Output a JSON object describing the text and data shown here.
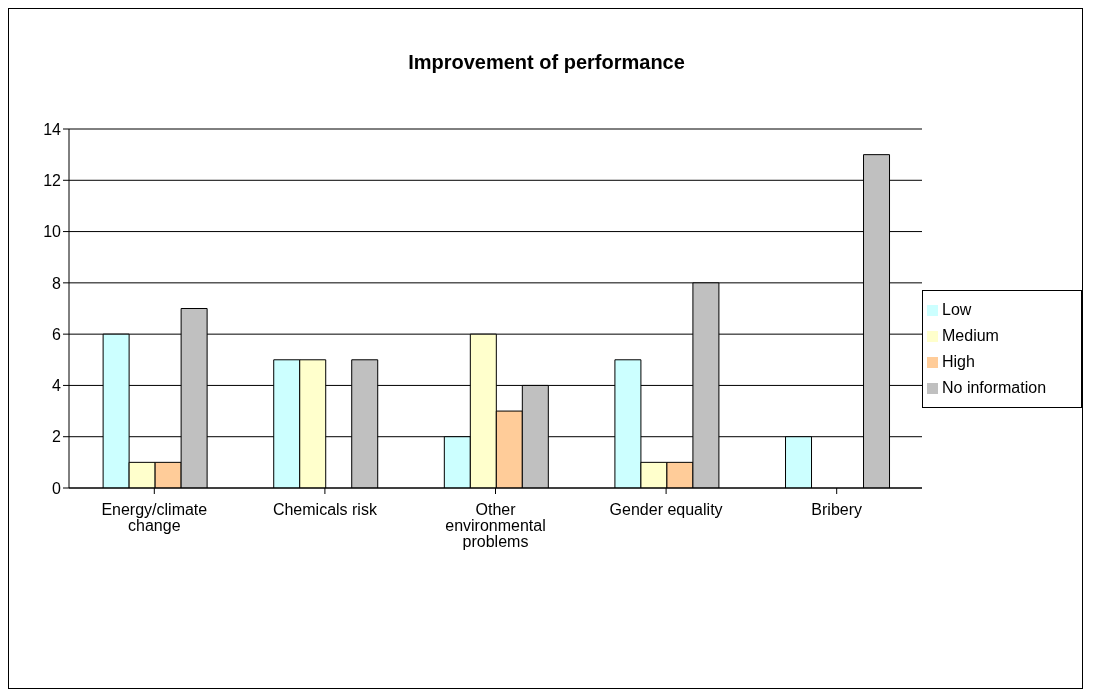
{
  "chart_data": {
    "type": "bar",
    "title": "Improvement of performance",
    "categories": [
      "Energy/climate change",
      "Chemicals risk",
      "Other environmental problems",
      "Gender equality",
      "Bribery"
    ],
    "series": [
      {
        "name": "Low",
        "color": "#ccffff",
        "values": [
          6,
          5,
          2,
          5,
          2
        ]
      },
      {
        "name": "Medium",
        "color": "#ffffcc",
        "values": [
          1,
          5,
          6,
          1,
          0
        ]
      },
      {
        "name": "High",
        "color": "#ffcc99",
        "values": [
          1,
          0,
          3,
          1,
          0
        ]
      },
      {
        "name": "No information",
        "color": "#c0c0c0",
        "values": [
          7,
          5,
          4,
          8,
          13
        ]
      }
    ],
    "ylim": [
      0,
      14
    ],
    "yticks": [
      0,
      2,
      4,
      6,
      8,
      10,
      12,
      14
    ],
    "grid": "y",
    "legend": "right"
  }
}
